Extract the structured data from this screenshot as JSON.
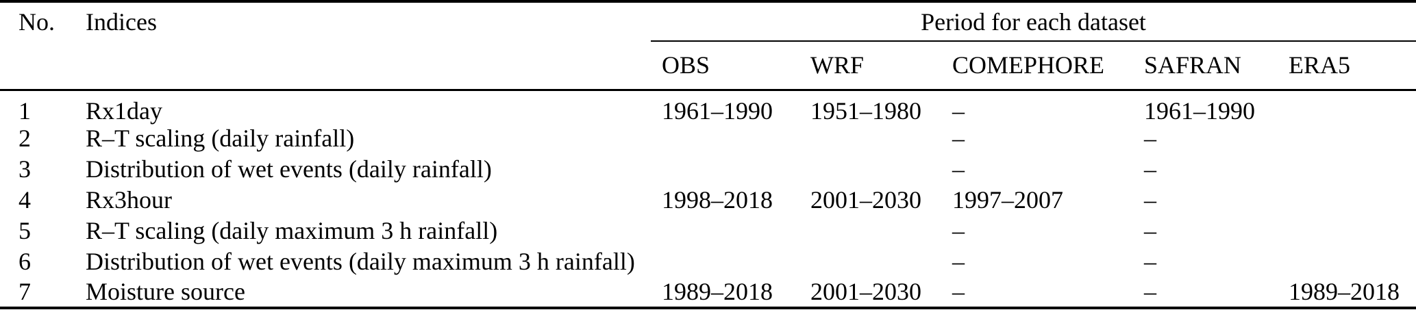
{
  "colors": {
    "background": "#ffffff",
    "text": "#000000",
    "rule": "#000000"
  },
  "table": {
    "headers": {
      "no": "No.",
      "indices": "Indices",
      "group": "Period for each dataset",
      "datasets": [
        "OBS",
        "WRF",
        "COMEPHORE",
        "SAFRAN",
        "ERA5"
      ]
    },
    "rows": [
      [
        "1",
        "Rx1day",
        "1961–1990",
        "1951–1980",
        "–",
        "1961–1990",
        ""
      ],
      [
        "2",
        "R–T scaling (daily rainfall)",
        "",
        "",
        "–",
        "–",
        ""
      ],
      [
        "3",
        "Distribution of wet events (daily rainfall)",
        "",
        "",
        "–",
        "–",
        ""
      ],
      [
        "4",
        "Rx3hour",
        "1998–2018",
        "2001–2030",
        "1997–2007",
        "–",
        ""
      ],
      [
        "5",
        "R–T scaling (daily maximum 3 h rainfall)",
        "",
        "",
        "–",
        "–",
        ""
      ],
      [
        "6",
        "Distribution of wet events (daily maximum 3 h rainfall)",
        "",
        "",
        "–",
        "–",
        ""
      ],
      [
        "7",
        "Moisture source",
        "1989–2018",
        "2001–2030",
        "–",
        "–",
        "1989–2018"
      ]
    ]
  }
}
